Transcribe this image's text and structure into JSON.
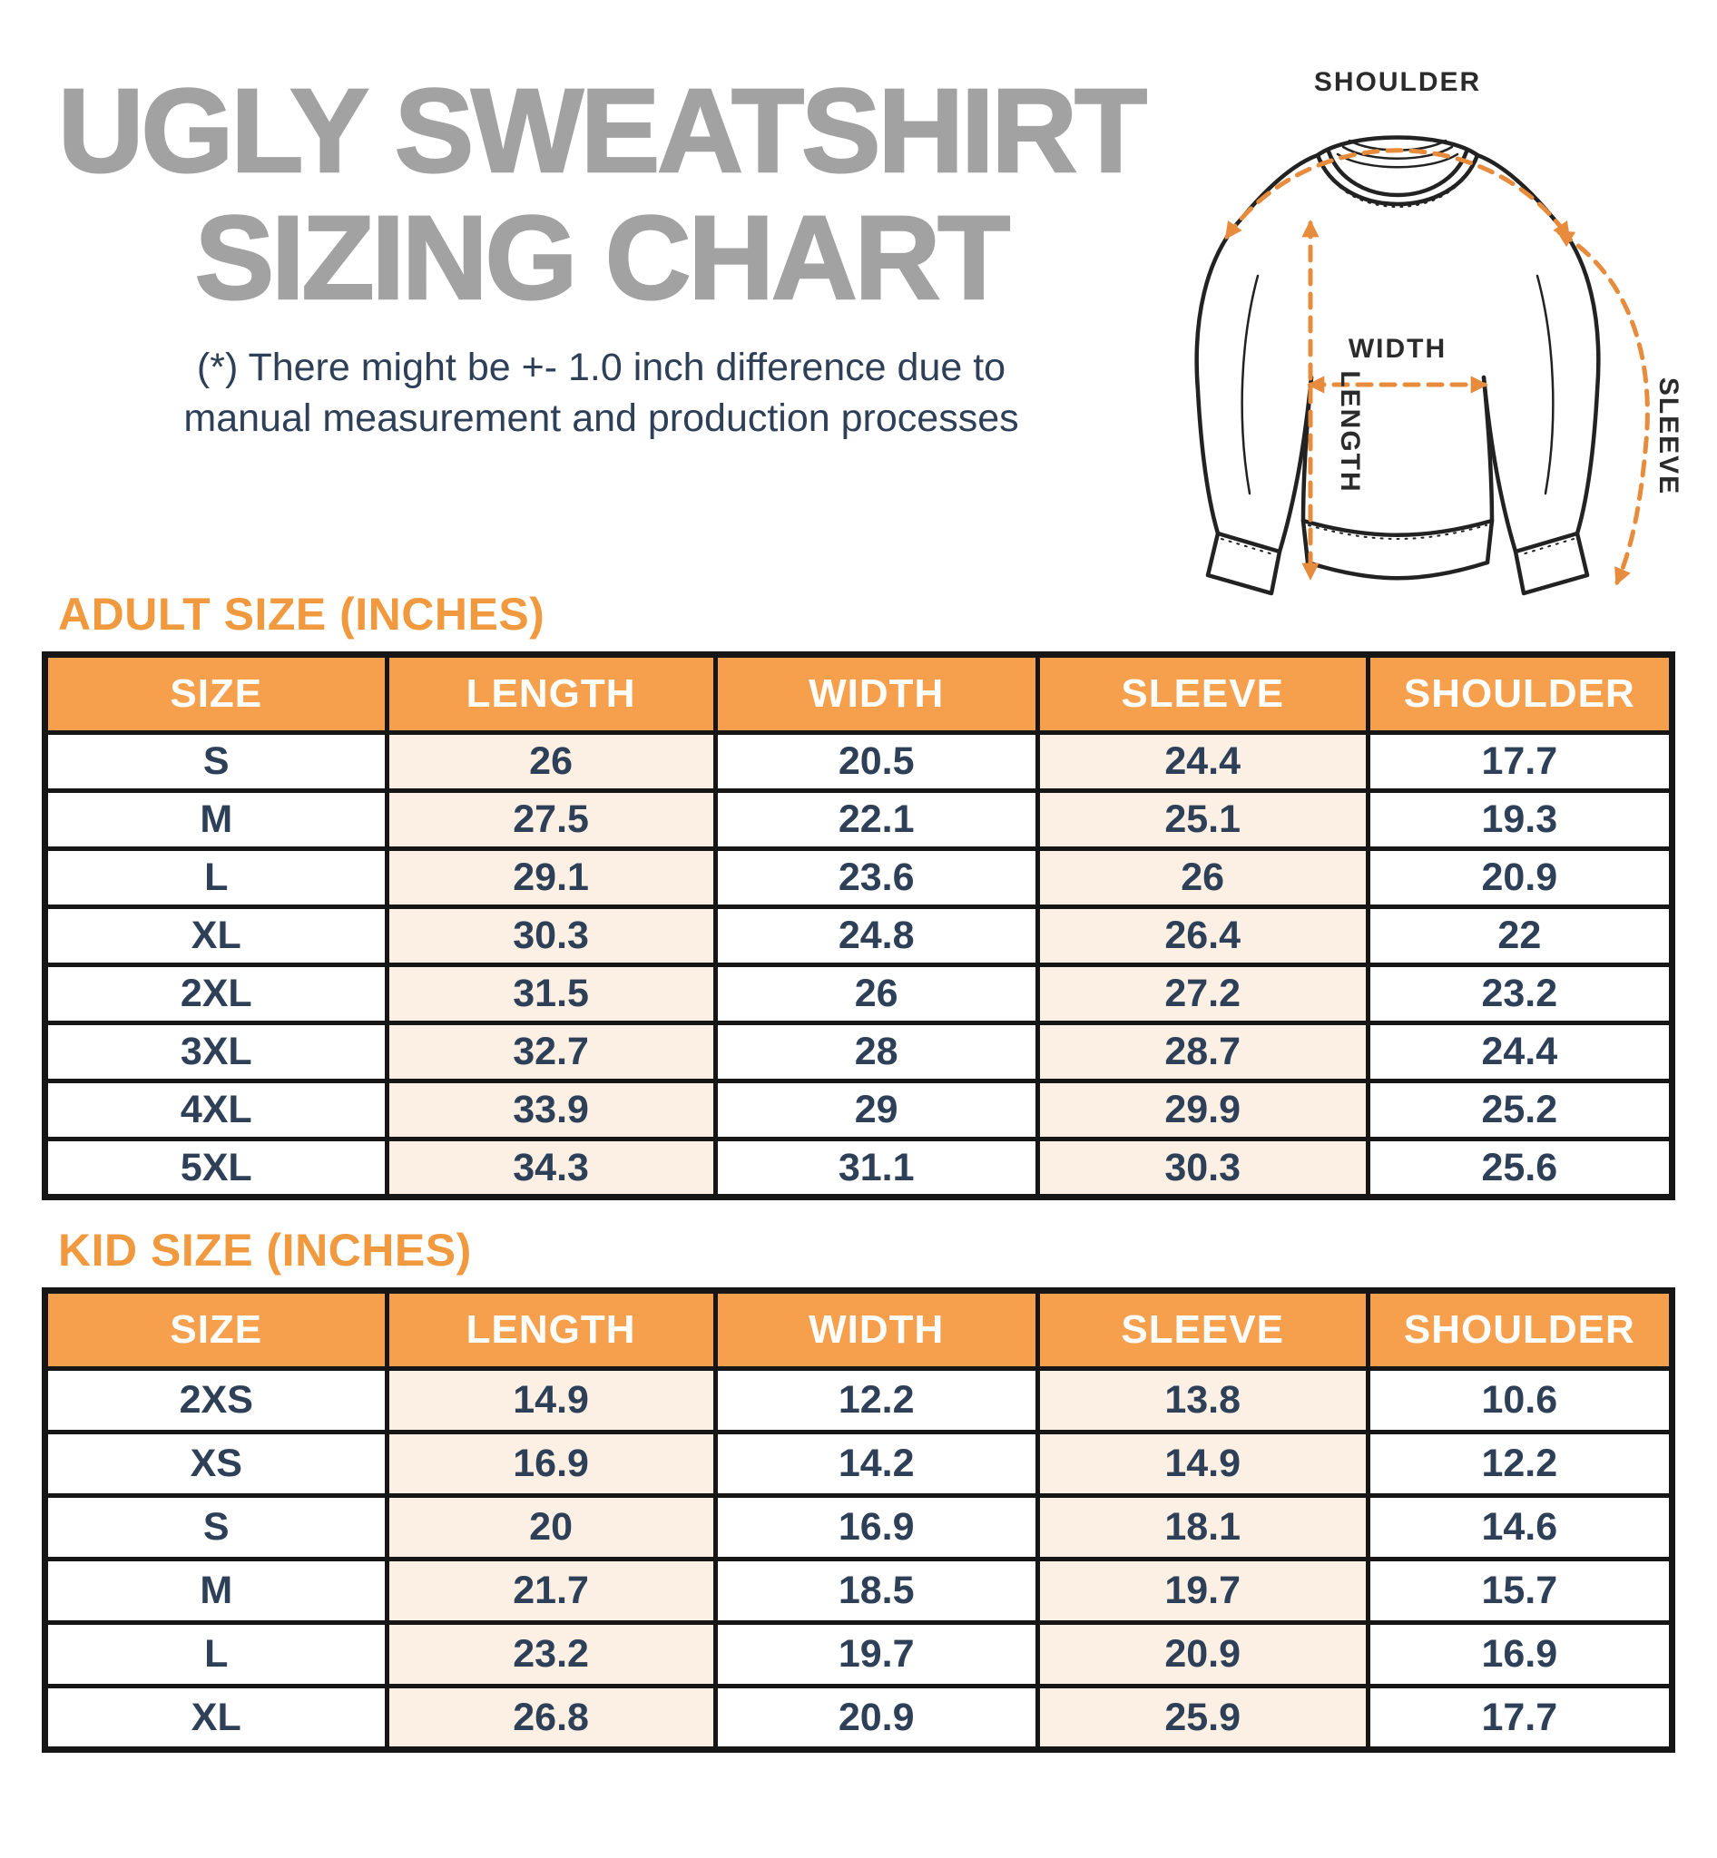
{
  "header": {
    "title_line1": "UGLY SWEATSHIRT",
    "title_line2": "SIZING CHART",
    "disclaimer_line1": "(*) There might be +- 1.0 inch difference due to",
    "disclaimer_line2": "manual measurement and production processes"
  },
  "diagram": {
    "shoulder_label": "SHOULDER",
    "width_label": "WIDTH",
    "length_label": "LENGTH",
    "sleeve_label": "SLEEVE"
  },
  "adult_table": {
    "heading": "ADULT SIZE (INCHES)",
    "columns": [
      "SIZE",
      "LENGTH",
      "WIDTH",
      "SLEEVE",
      "SHOULDER"
    ],
    "rows": [
      [
        "S",
        "26",
        "20.5",
        "24.4",
        "17.7"
      ],
      [
        "M",
        "27.5",
        "22.1",
        "25.1",
        "19.3"
      ],
      [
        "L",
        "29.1",
        "23.6",
        "26",
        "20.9"
      ],
      [
        "XL",
        "30.3",
        "24.8",
        "26.4",
        "22"
      ],
      [
        "2XL",
        "31.5",
        "26",
        "27.2",
        "23.2"
      ],
      [
        "3XL",
        "32.7",
        "28",
        "28.7",
        "24.4"
      ],
      [
        "4XL",
        "33.9",
        "29",
        "29.9",
        "25.2"
      ],
      [
        "5XL",
        "34.3",
        "31.1",
        "30.3",
        "25.6"
      ]
    ]
  },
  "kid_table": {
    "heading": "KID SIZE (INCHES)",
    "columns": [
      "SIZE",
      "LENGTH",
      "WIDTH",
      "SLEEVE",
      "SHOULDER"
    ],
    "rows": [
      [
        "2XS",
        "14.9",
        "12.2",
        "13.8",
        "10.6"
      ],
      [
        "XS",
        "16.9",
        "14.2",
        "14.9",
        "12.2"
      ],
      [
        "S",
        "20",
        "16.9",
        "18.1",
        "14.6"
      ],
      [
        "M",
        "21.7",
        "18.5",
        "19.7",
        "15.7"
      ],
      [
        "L",
        "23.2",
        "19.7",
        "20.9",
        "16.9"
      ],
      [
        "XL",
        "26.8",
        "20.9",
        "25.9",
        "17.7"
      ]
    ]
  },
  "colors": {
    "title_gray": "#A2A2A2",
    "accent_orange": "#F0993E",
    "header_orange": "#F6A04D",
    "peach_cell": "#FCEFE3",
    "navy_text": "#2E4058",
    "table_border": "#161616",
    "dash_orange": "#E78B3D",
    "diagram_line": "#222222"
  },
  "chart_data": [
    {
      "type": "table",
      "title": "ADULT SIZE (INCHES)",
      "columns": [
        "SIZE",
        "LENGTH",
        "WIDTH",
        "SLEEVE",
        "SHOULDER"
      ],
      "rows": [
        [
          "S",
          26,
          20.5,
          24.4,
          17.7
        ],
        [
          "M",
          27.5,
          22.1,
          25.1,
          19.3
        ],
        [
          "L",
          29.1,
          23.6,
          26,
          20.9
        ],
        [
          "XL",
          30.3,
          24.8,
          26.4,
          22
        ],
        [
          "2XL",
          31.5,
          26,
          27.2,
          23.2
        ],
        [
          "3XL",
          32.7,
          28,
          28.7,
          24.4
        ],
        [
          "4XL",
          33.9,
          29,
          29.9,
          25.2
        ],
        [
          "5XL",
          34.3,
          31.1,
          30.3,
          25.6
        ]
      ]
    },
    {
      "type": "table",
      "title": "KID SIZE (INCHES)",
      "columns": [
        "SIZE",
        "LENGTH",
        "WIDTH",
        "SLEEVE",
        "SHOULDER"
      ],
      "rows": [
        [
          "2XS",
          14.9,
          12.2,
          13.8,
          10.6
        ],
        [
          "XS",
          16.9,
          14.2,
          14.9,
          12.2
        ],
        [
          "S",
          20,
          16.9,
          18.1,
          14.6
        ],
        [
          "M",
          21.7,
          18.5,
          19.7,
          15.7
        ],
        [
          "L",
          23.2,
          19.7,
          20.9,
          16.9
        ],
        [
          "XL",
          26.8,
          20.9,
          25.9,
          17.7
        ]
      ]
    }
  ]
}
